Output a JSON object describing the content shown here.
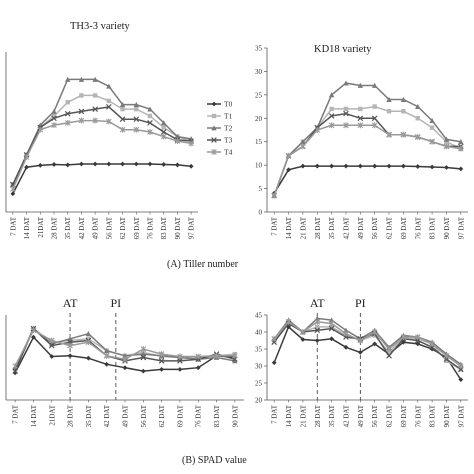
{
  "chart_data": [
    {
      "type": "line",
      "title": "TH3-3 variety",
      "ylim": [
        0,
        35
      ],
      "yticks": [],
      "categories": [
        "7 DAT",
        "14 DAT",
        "21DAT",
        "28 DAT",
        "35 DAT",
        "42 DAT",
        "49 DAT",
        "56 DAT",
        "62 DAT",
        "69 DAT",
        "76 DAT",
        "83 DAT",
        "90 DAT",
        "97 DAT"
      ],
      "legend": {
        "placement": "right"
      },
      "series": [
        {
          "name": "T0",
          "color": "#3a3a3a",
          "marker": "diamond",
          "values": [
            4,
            9.8,
            10.2,
            10.4,
            10.3,
            10.5,
            10.5,
            10.5,
            10.5,
            10.5,
            10.5,
            10.4,
            10.3,
            10.0
          ]
        },
        {
          "name": "T1",
          "color": "#b5b5b5",
          "marker": "square",
          "values": [
            6,
            12.5,
            18.5,
            21,
            24,
            25.5,
            25.5,
            24.3,
            22.5,
            22.5,
            21,
            18.5,
            16.5,
            15.5
          ]
        },
        {
          "name": "T2",
          "color": "#7a7a7a",
          "marker": "triangle",
          "values": [
            6,
            12.5,
            19,
            22,
            29,
            29,
            29,
            27.5,
            23.5,
            23.5,
            22.5,
            19.5,
            16.5,
            16
          ]
        },
        {
          "name": "T3",
          "color": "#555555",
          "marker": "x",
          "values": [
            6,
            12.5,
            18.5,
            20.5,
            21.5,
            22,
            22.5,
            23,
            20.3,
            20.3,
            19.5,
            17.5,
            15.8,
            15.5
          ]
        },
        {
          "name": "T4",
          "color": "#9a9a9a",
          "marker": "star",
          "values": [
            5,
            12,
            18,
            19,
            19.5,
            20,
            20,
            19.8,
            18,
            18,
            17.5,
            16.5,
            15.5,
            15
          ]
        }
      ]
    },
    {
      "type": "line",
      "title": "KD18 variety",
      "ylim": [
        0,
        35
      ],
      "yticks": [
        0,
        5,
        10,
        15,
        20,
        25,
        30,
        35
      ],
      "categories": [
        "7 DAT",
        "14 DAT",
        "21 DAT",
        "28 DAT",
        "35 DAT",
        "42 DAT",
        "49 DAT",
        "56 DAT",
        "62 DAT",
        "69 DAT",
        "76 DAT",
        "83 DAT",
        "90 DAT",
        "97 DAT"
      ],
      "series": [
        {
          "name": "T0",
          "color": "#3a3a3a",
          "marker": "diamond",
          "values": [
            4,
            9,
            9.8,
            9.8,
            9.8,
            9.8,
            9.8,
            9.8,
            9.8,
            9.8,
            9.7,
            9.6,
            9.5,
            9.2
          ]
        },
        {
          "name": "T1",
          "color": "#b5b5b5",
          "marker": "square",
          "values": [
            3.5,
            12,
            15,
            18,
            22,
            22,
            22,
            22.5,
            21.5,
            21.5,
            20,
            18,
            15,
            13.5
          ]
        },
        {
          "name": "T2",
          "color": "#7a7a7a",
          "marker": "triangle",
          "values": [
            3.5,
            12,
            15,
            18,
            25,
            27.5,
            27,
            27,
            24,
            24,
            22.5,
            19.5,
            15.5,
            15
          ]
        },
        {
          "name": "T3",
          "color": "#555555",
          "marker": "x",
          "values": [
            3.5,
            12,
            14,
            18,
            20.5,
            21,
            20,
            20,
            16.5,
            16.5,
            16,
            15,
            14,
            14
          ]
        },
        {
          "name": "T4",
          "color": "#9a9a9a",
          "marker": "star",
          "values": [
            3.5,
            12,
            14,
            17.5,
            18.5,
            18.5,
            18.5,
            18.5,
            16.5,
            16.5,
            16,
            15,
            14,
            13.5
          ]
        }
      ]
    },
    {
      "type": "line",
      "title": "",
      "ylim": [
        20,
        45
      ],
      "yticks": [],
      "categories": [
        "7 DAT",
        "14 DAT",
        "21DAT",
        "28 DAT",
        "35 DAT",
        "42 DAT",
        "49 DAT",
        "56 DAT",
        "62 DAT",
        "69 DAT",
        "76 DAT",
        "83 DAT",
        "90 DAT"
      ],
      "annotations": [
        {
          "label": "AT",
          "at_index": 3
        },
        {
          "label": "PI",
          "at_index": 5.5
        }
      ],
      "series": [
        {
          "name": "T0",
          "color": "#3a3a3a",
          "marker": "diamond",
          "values": [
            28,
            38.5,
            32.8,
            33,
            32.3,
            30.5,
            29.5,
            28.5,
            29,
            29,
            29.5,
            33,
            32.5
          ]
        },
        {
          "name": "T1",
          "color": "#b5b5b5",
          "marker": "square",
          "values": [
            29,
            41,
            37,
            37.5,
            38,
            34.5,
            33,
            34,
            32.8,
            32.5,
            32.5,
            33,
            33.5
          ]
        },
        {
          "name": "T2",
          "color": "#7a7a7a",
          "marker": "triangle",
          "values": [
            29.5,
            41,
            36.5,
            38,
            39.5,
            34.5,
            33,
            33.5,
            33,
            32.5,
            32,
            32.5,
            31.5
          ]
        },
        {
          "name": "T3",
          "color": "#555555",
          "marker": "x",
          "values": [
            28.5,
            41,
            36,
            37,
            37.5,
            33,
            31.5,
            32.5,
            31.5,
            31.5,
            32,
            33.5,
            32
          ]
        },
        {
          "name": "T4",
          "color": "#9a9a9a",
          "marker": "star",
          "values": [
            30,
            40.5,
            37.5,
            36,
            37,
            33,
            32,
            35,
            33.5,
            32.8,
            32.8,
            33,
            33
          ]
        }
      ]
    },
    {
      "type": "line",
      "title": "",
      "ylim": [
        20,
        45
      ],
      "yticks": [
        20,
        25,
        30,
        35,
        40,
        45
      ],
      "categories": [
        "7 DAT",
        "14 DAT",
        "21 DAT",
        "28 DAT",
        "35 DAT",
        "42 DAT",
        "49 DAT",
        "56 DAT",
        "62 DAT",
        "69 DAT",
        "76 DAT",
        "83 DAT",
        "90 DAT",
        "97 DAT"
      ],
      "annotations": [
        {
          "label": "AT",
          "at_index": 3
        },
        {
          "label": "PI",
          "at_index": 6
        }
      ],
      "series": [
        {
          "name": "T0",
          "color": "#3a3a3a",
          "marker": "diamond",
          "values": [
            31,
            41.5,
            37.8,
            37.5,
            38,
            35.5,
            34,
            36.5,
            33.5,
            37,
            36.5,
            35,
            32.5,
            26
          ]
        },
        {
          "name": "T1",
          "color": "#b5b5b5",
          "marker": "square",
          "values": [
            37.5,
            43,
            40,
            41.5,
            41.5,
            39,
            37.5,
            39,
            34,
            38.5,
            38,
            36.5,
            31.5,
            29
          ]
        },
        {
          "name": "T2",
          "color": "#7a7a7a",
          "marker": "triangle",
          "values": [
            38,
            43.5,
            40,
            44,
            43.5,
            40.5,
            38,
            40.5,
            35.5,
            39,
            38.5,
            37,
            33.5,
            30.5
          ]
        },
        {
          "name": "T3",
          "color": "#555555",
          "marker": "x",
          "values": [
            37,
            42.5,
            40,
            40.5,
            41,
            38.5,
            38,
            39.5,
            33,
            38,
            37.5,
            35.5,
            32,
            29
          ]
        },
        {
          "name": "T4",
          "color": "#9a9a9a",
          "marker": "star",
          "values": [
            38,
            43,
            40,
            43,
            42.5,
            39.5,
            37.5,
            40,
            35,
            38.5,
            38.5,
            36.5,
            33,
            30
          ]
        }
      ]
    }
  ],
  "captions": {
    "a": "(A) Tiller number",
    "b": "(B) SPAD value"
  }
}
